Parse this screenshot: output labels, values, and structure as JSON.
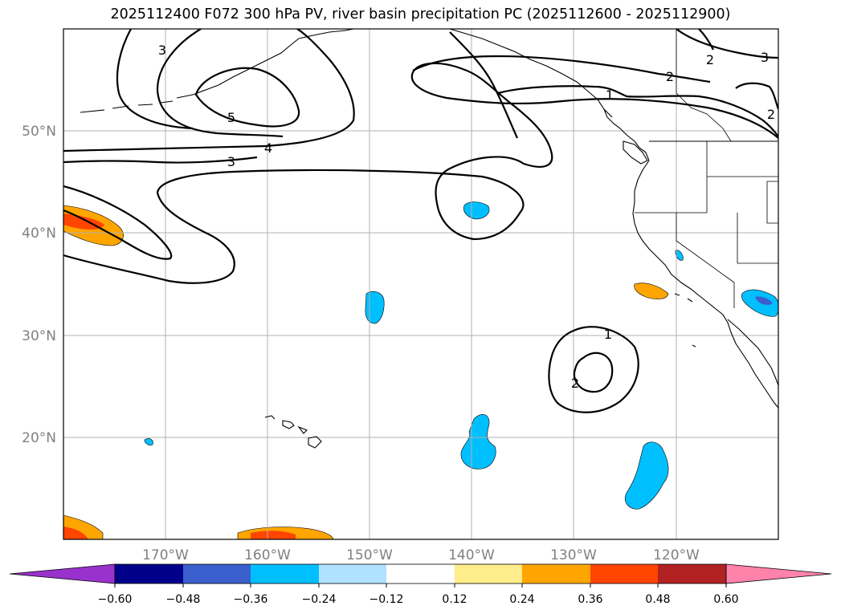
{
  "title": "2025112400 F072 300 hPa PV, river basin precipitation PC (2025112600 - 2025112900)",
  "map": {
    "lon_range": [
      -180,
      -110
    ],
    "lat_range": [
      10,
      60
    ],
    "lon_ticks": [
      {
        "lon": -170,
        "label": "170°W"
      },
      {
        "lon": -160,
        "label": "160°W"
      },
      {
        "lon": -150,
        "label": "150°W"
      },
      {
        "lon": -140,
        "label": "140°W"
      },
      {
        "lon": -130,
        "label": "130°W"
      },
      {
        "lon": -120,
        "label": "120°W"
      }
    ],
    "lat_ticks": [
      {
        "lat": 50,
        "label": "50°N"
      },
      {
        "lat": 40,
        "label": "40°N"
      },
      {
        "lat": 30,
        "label": "30°N"
      },
      {
        "lat": 20,
        "label": "20°N"
      }
    ],
    "grid": true,
    "contour_labels": [
      "5",
      "4",
      "3",
      "3",
      "2",
      "2",
      "3",
      "2",
      "1",
      "1",
      "2"
    ]
  },
  "colorbar": {
    "ticks": [
      "−0.60",
      "−0.48",
      "−0.36",
      "−0.24",
      "−0.12",
      "0.12",
      "0.24",
      "0.36",
      "0.48",
      "0.60"
    ],
    "colors": [
      "#9932cc",
      "#00008b",
      "#3a5fcd",
      "#00bfff",
      "#b0e2ff",
      "#ffffff",
      "#ffec8b",
      "#ffa500",
      "#ff4500",
      "#b22222",
      "#ff82ab"
    ],
    "extend": "both"
  }
}
